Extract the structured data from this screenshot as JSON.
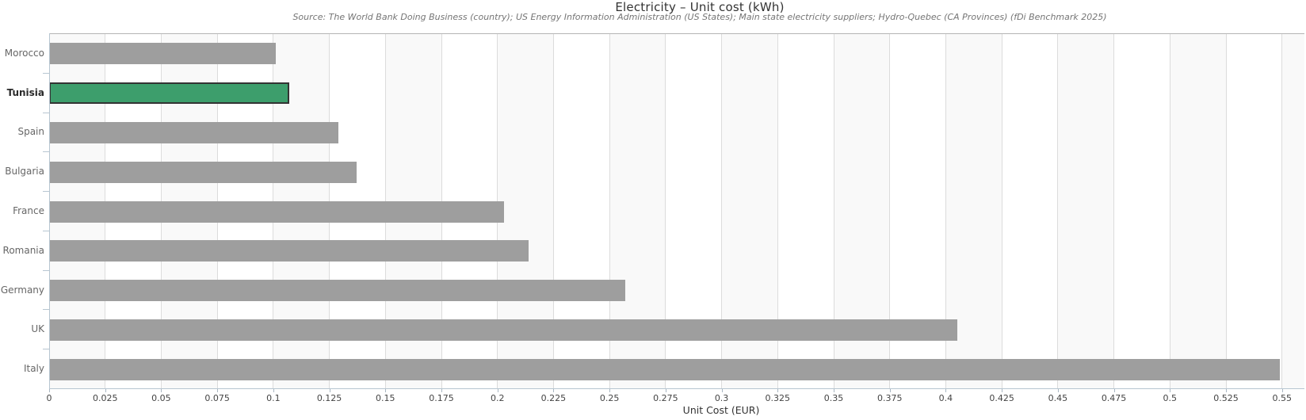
{
  "header": {
    "title": "Electricity – Unit cost (kWh)",
    "subtitle": "Source: The World Bank Doing Business (country); US Energy Information Administration (US States); Main state electricity suppliers; Hydro-Quebec (CA Provinces) (fDi Benchmark 2025)"
  },
  "chart_data": {
    "type": "bar",
    "orientation": "horizontal",
    "title": "Electricity – Unit cost (kWh)",
    "subtitle": "Source: The World Bank Doing Business (country); US Energy Information Administration (US States); Main state electricity suppliers; Hydro-Quebec (CA Provinces) (fDi Benchmark 2025)",
    "xlabel": "Unit Cost (EUR)",
    "categories": [
      "Morocco",
      "Tunisia",
      "Spain",
      "Bulgaria",
      "France",
      "Romania",
      "Germany",
      "UK",
      "Italy"
    ],
    "values": [
      0.101,
      0.107,
      0.129,
      0.137,
      0.203,
      0.214,
      0.257,
      0.405,
      0.549
    ],
    "highlight_category": "Tunisia",
    "xlim": [
      0,
      0.56
    ],
    "x_tick_step": 0.025,
    "x_ticks": [
      0,
      0.025,
      0.05,
      0.075,
      0.1,
      0.125,
      0.15,
      0.175,
      0.2,
      0.225,
      0.25,
      0.275,
      0.3,
      0.325,
      0.35,
      0.375,
      0.4,
      0.425,
      0.45,
      0.475,
      0.5,
      0.525,
      0.55
    ],
    "x_tick_labels": [
      "0",
      "0.025",
      "0.05",
      "0.075",
      "0.1",
      "0.125",
      "0.15",
      "0.175",
      "0.2",
      "0.225",
      "0.25",
      "0.275",
      "0.3",
      "0.325",
      "0.35",
      "0.375",
      "0.4",
      "0.425",
      "0.45",
      "0.475",
      "0.5",
      "0.525",
      "0.55"
    ],
    "grid": "vertical-gridlines-with-alternating-bands",
    "legend": "none",
    "colors": {
      "bar": "#9e9e9e",
      "highlight_bar": "#3d9e6c",
      "highlight_border": "#333333",
      "gridline": "#dcdcdc",
      "band": "#f9f9f9",
      "axis": "#b7c6d1",
      "title_text": "#333333",
      "subtitle_text": "#757575",
      "tick_text": "#444444"
    }
  }
}
